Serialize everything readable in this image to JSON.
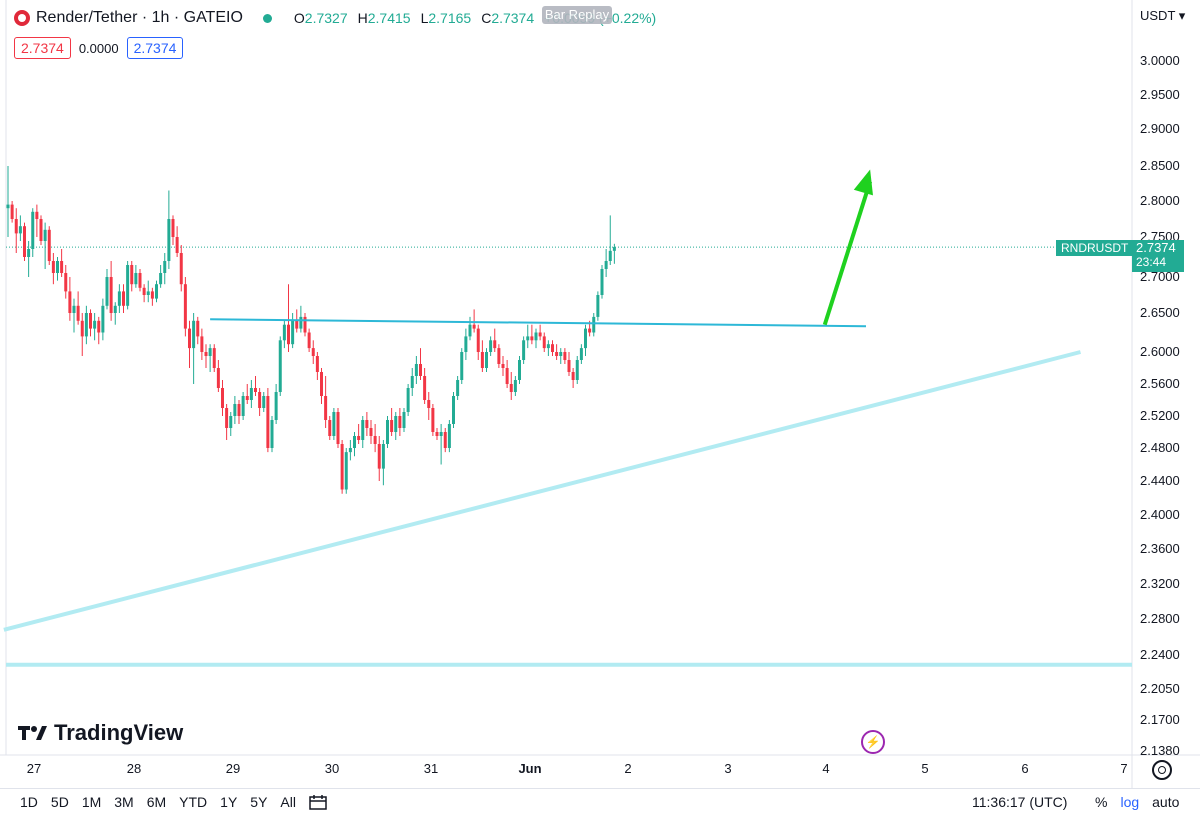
{
  "header": {
    "symbol_title": "Render/Tether · 1h · GATEIO",
    "ohlc": [
      {
        "k": "O",
        "v": "2.7327"
      },
      {
        "k": "H",
        "v": "2.7415"
      },
      {
        "k": "L",
        "v": "2.7165"
      },
      {
        "k": "C",
        "v": "2.7374"
      }
    ],
    "change": "+0.0059 (+0.22%)",
    "bar_replay": "Bar Replay",
    "box_left": "2.7374",
    "box_mid": "0.0000",
    "box_right": "2.7374",
    "currency": "USDT"
  },
  "price_label": {
    "ticker": "RNDRUSDT",
    "price": "2.7374",
    "countdown": "23:44"
  },
  "branding": {
    "name": "TradingView"
  },
  "footer": {
    "ranges": [
      "1D",
      "5D",
      "1M",
      "3M",
      "6M",
      "YTD",
      "1Y",
      "5Y",
      "All"
    ],
    "clock": "11:36:17 (UTC)",
    "percent": "%",
    "log": "log",
    "auto": "auto"
  },
  "colors": {
    "up": "#22ab94",
    "down": "#f23645",
    "horizontal_line": "#2db8d7",
    "trendline": "#b2ebf2",
    "arrow": "#1fd11f"
  },
  "chart_data": {
    "type": "candlestick",
    "scale": "log",
    "y_ticks": [
      "3.0000",
      "2.9500",
      "2.9000",
      "2.8500",
      "2.8000",
      "2.7500",
      "2.7000",
      "2.6500",
      "2.6000",
      "2.5600",
      "2.5200",
      "2.4800",
      "2.4400",
      "2.4000",
      "2.3600",
      "2.3200",
      "2.2800",
      "2.2400",
      "2.2050",
      "2.1700",
      "2.1380"
    ],
    "x_ticks": [
      "27",
      "28",
      "29",
      "30",
      "31",
      "Jun",
      "2",
      "3",
      "4",
      "5",
      "6",
      "7"
    ],
    "last_price": 2.7374,
    "candles_ohlc": [
      [
        2.79,
        2.85,
        2.75,
        2.795
      ],
      [
        2.795,
        2.8,
        2.77,
        2.775
      ],
      [
        2.775,
        2.79,
        2.73,
        2.755
      ],
      [
        2.755,
        2.78,
        2.745,
        2.765
      ],
      [
        2.765,
        2.77,
        2.72,
        2.725
      ],
      [
        2.725,
        2.745,
        2.7,
        2.735
      ],
      [
        2.735,
        2.79,
        2.725,
        2.785
      ],
      [
        2.785,
        2.795,
        2.75,
        2.775
      ],
      [
        2.775,
        2.78,
        2.74,
        2.745
      ],
      [
        2.745,
        2.77,
        2.71,
        2.76
      ],
      [
        2.76,
        2.765,
        2.715,
        2.72
      ],
      [
        2.72,
        2.73,
        2.69,
        2.705
      ],
      [
        2.705,
        2.725,
        2.695,
        2.72
      ],
      [
        2.72,
        2.735,
        2.7,
        2.705
      ],
      [
        2.705,
        2.715,
        2.67,
        2.68
      ],
      [
        2.68,
        2.7,
        2.64,
        2.65
      ],
      [
        2.65,
        2.67,
        2.625,
        2.66
      ],
      [
        2.66,
        2.68,
        2.635,
        2.64
      ],
      [
        2.64,
        2.65,
        2.595,
        2.62
      ],
      [
        2.62,
        2.66,
        2.61,
        2.65
      ],
      [
        2.65,
        2.655,
        2.62,
        2.63
      ],
      [
        2.63,
        2.65,
        2.615,
        2.64
      ],
      [
        2.64,
        2.645,
        2.61,
        2.625
      ],
      [
        2.625,
        2.67,
        2.615,
        2.66
      ],
      [
        2.66,
        2.71,
        2.655,
        2.7
      ],
      [
        2.7,
        2.72,
        2.64,
        2.65
      ],
      [
        2.65,
        2.665,
        2.635,
        2.66
      ],
      [
        2.66,
        2.69,
        2.65,
        2.68
      ],
      [
        2.68,
        2.69,
        2.65,
        2.66
      ],
      [
        2.66,
        2.72,
        2.655,
        2.715
      ],
      [
        2.715,
        2.72,
        2.68,
        2.69
      ],
      [
        2.69,
        2.715,
        2.685,
        2.705
      ],
      [
        2.705,
        2.71,
        2.68,
        2.685
      ],
      [
        2.685,
        2.69,
        2.665,
        2.675
      ],
      [
        2.675,
        2.695,
        2.665,
        2.68
      ],
      [
        2.68,
        2.685,
        2.66,
        2.67
      ],
      [
        2.67,
        2.695,
        2.665,
        2.69
      ],
      [
        2.69,
        2.715,
        2.685,
        2.705
      ],
      [
        2.705,
        2.73,
        2.69,
        2.72
      ],
      [
        2.72,
        2.815,
        2.71,
        2.775
      ],
      [
        2.775,
        2.78,
        2.74,
        2.75
      ],
      [
        2.75,
        2.765,
        2.725,
        2.73
      ],
      [
        2.73,
        2.74,
        2.68,
        2.69
      ],
      [
        2.69,
        2.7,
        2.62,
        2.63
      ],
      [
        2.63,
        2.64,
        2.58,
        2.605
      ],
      [
        2.605,
        2.65,
        2.56,
        2.64
      ],
      [
        2.64,
        2.645,
        2.61,
        2.62
      ],
      [
        2.62,
        2.63,
        2.59,
        2.6
      ],
      [
        2.6,
        2.61,
        2.58,
        2.595
      ],
      [
        2.595,
        2.61,
        2.575,
        2.605
      ],
      [
        2.605,
        2.61,
        2.575,
        2.58
      ],
      [
        2.58,
        2.59,
        2.55,
        2.555
      ],
      [
        2.555,
        2.565,
        2.52,
        2.53
      ],
      [
        2.53,
        2.535,
        2.49,
        2.505
      ],
      [
        2.505,
        2.525,
        2.495,
        2.52
      ],
      [
        2.52,
        2.545,
        2.51,
        2.535
      ],
      [
        2.535,
        2.54,
        2.51,
        2.52
      ],
      [
        2.52,
        2.55,
        2.515,
        2.545
      ],
      [
        2.545,
        2.56,
        2.535,
        2.54
      ],
      [
        2.54,
        2.565,
        2.53,
        2.555
      ],
      [
        2.555,
        2.57,
        2.545,
        2.55
      ],
      [
        2.55,
        2.555,
        2.52,
        2.53
      ],
      [
        2.53,
        2.55,
        2.525,
        2.545
      ],
      [
        2.545,
        2.555,
        2.475,
        2.48
      ],
      [
        2.48,
        2.52,
        2.475,
        2.515
      ],
      [
        2.515,
        2.56,
        2.51,
        2.55
      ],
      [
        2.55,
        2.62,
        2.545,
        2.615
      ],
      [
        2.615,
        2.64,
        2.605,
        2.635
      ],
      [
        2.635,
        2.69,
        2.6,
        2.61
      ],
      [
        2.61,
        2.65,
        2.605,
        2.64
      ],
      [
        2.64,
        2.655,
        2.625,
        2.63
      ],
      [
        2.63,
        2.66,
        2.625,
        2.645
      ],
      [
        2.645,
        2.65,
        2.62,
        2.625
      ],
      [
        2.625,
        2.63,
        2.6,
        2.605
      ],
      [
        2.605,
        2.615,
        2.585,
        2.595
      ],
      [
        2.595,
        2.6,
        2.565,
        2.575
      ],
      [
        2.575,
        2.58,
        2.535,
        2.545
      ],
      [
        2.545,
        2.57,
        2.505,
        2.515
      ],
      [
        2.515,
        2.52,
        2.49,
        2.495
      ],
      [
        2.495,
        2.53,
        2.49,
        2.525
      ],
      [
        2.525,
        2.53,
        2.48,
        2.485
      ],
      [
        2.485,
        2.49,
        2.425,
        2.43
      ],
      [
        2.43,
        2.48,
        2.425,
        2.475
      ],
      [
        2.475,
        2.49,
        2.465,
        2.48
      ],
      [
        2.48,
        2.5,
        2.47,
        2.495
      ],
      [
        2.495,
        2.51,
        2.485,
        2.49
      ],
      [
        2.49,
        2.52,
        2.48,
        2.515
      ],
      [
        2.515,
        2.525,
        2.495,
        2.505
      ],
      [
        2.505,
        2.515,
        2.485,
        2.495
      ],
      [
        2.495,
        2.51,
        2.475,
        2.485
      ],
      [
        2.485,
        2.495,
        2.44,
        2.455
      ],
      [
        2.455,
        2.49,
        2.435,
        2.485
      ],
      [
        2.485,
        2.52,
        2.48,
        2.515
      ],
      [
        2.515,
        2.53,
        2.495,
        2.5
      ],
      [
        2.5,
        2.525,
        2.49,
        2.52
      ],
      [
        2.52,
        2.53,
        2.495,
        2.505
      ],
      [
        2.505,
        2.53,
        2.5,
        2.525
      ],
      [
        2.525,
        2.56,
        2.52,
        2.555
      ],
      [
        2.555,
        2.58,
        2.545,
        2.57
      ],
      [
        2.57,
        2.595,
        2.56,
        2.585
      ],
      [
        2.585,
        2.605,
        2.565,
        2.57
      ],
      [
        2.57,
        2.58,
        2.535,
        2.54
      ],
      [
        2.54,
        2.55,
        2.515,
        2.53
      ],
      [
        2.53,
        2.535,
        2.495,
        2.5
      ],
      [
        2.5,
        2.505,
        2.49,
        2.495
      ],
      [
        2.495,
        2.51,
        2.46,
        2.5
      ],
      [
        2.5,
        2.505,
        2.475,
        2.48
      ],
      [
        2.48,
        2.515,
        2.475,
        2.51
      ],
      [
        2.51,
        2.55,
        2.505,
        2.545
      ],
      [
        2.545,
        2.57,
        2.54,
        2.565
      ],
      [
        2.565,
        2.605,
        2.56,
        2.6
      ],
      [
        2.6,
        2.63,
        2.59,
        2.62
      ],
      [
        2.62,
        2.645,
        2.615,
        2.635
      ],
      [
        2.635,
        2.655,
        2.625,
        2.63
      ],
      [
        2.63,
        2.635,
        2.59,
        2.6
      ],
      [
        2.6,
        2.615,
        2.575,
        2.58
      ],
      [
        2.58,
        2.605,
        2.575,
        2.6
      ],
      [
        2.6,
        2.62,
        2.595,
        2.615
      ],
      [
        2.615,
        2.63,
        2.6,
        2.605
      ],
      [
        2.605,
        2.61,
        2.58,
        2.585
      ],
      [
        2.585,
        2.595,
        2.57,
        2.58
      ],
      [
        2.58,
        2.59,
        2.555,
        2.56
      ],
      [
        2.56,
        2.575,
        2.54,
        2.55
      ],
      [
        2.55,
        2.57,
        2.545,
        2.565
      ],
      [
        2.565,
        2.595,
        2.56,
        2.59
      ],
      [
        2.59,
        2.62,
        2.585,
        2.615
      ],
      [
        2.615,
        2.635,
        2.605,
        2.62
      ],
      [
        2.62,
        2.635,
        2.61,
        2.615
      ],
      [
        2.615,
        2.63,
        2.605,
        2.625
      ],
      [
        2.625,
        2.635,
        2.615,
        2.62
      ],
      [
        2.62,
        2.625,
        2.6,
        2.605
      ],
      [
        2.605,
        2.615,
        2.595,
        2.61
      ],
      [
        2.61,
        2.615,
        2.595,
        2.6
      ],
      [
        2.6,
        2.61,
        2.59,
        2.595
      ],
      [
        2.595,
        2.605,
        2.585,
        2.6
      ],
      [
        2.6,
        2.605,
        2.585,
        2.59
      ],
      [
        2.59,
        2.6,
        2.57,
        2.575
      ],
      [
        2.575,
        2.58,
        2.555,
        2.565
      ],
      [
        2.565,
        2.595,
        2.56,
        2.59
      ],
      [
        2.59,
        2.61,
        2.585,
        2.605
      ],
      [
        2.605,
        2.635,
        2.595,
        2.63
      ],
      [
        2.63,
        2.64,
        2.62,
        2.625
      ],
      [
        2.625,
        2.65,
        2.62,
        2.645
      ],
      [
        2.645,
        2.68,
        2.64,
        2.675
      ],
      [
        2.675,
        2.715,
        2.67,
        2.71
      ],
      [
        2.71,
        2.735,
        2.7,
        2.72
      ],
      [
        2.72,
        2.78,
        2.715,
        2.7327
      ],
      [
        2.7327,
        2.7415,
        2.7165,
        2.7374
      ]
    ]
  },
  "drawings": {
    "horizontal_line": {
      "x_start_candle": 49,
      "x_end_candle": 208,
      "price_start": 2.642,
      "price_end": 2.633
    },
    "trendline": {
      "x_start_candle": -1,
      "x_end_candle": 260,
      "price_start": 2.268,
      "price_end": 2.6
    },
    "support_line": {
      "price": 2.23
    },
    "arrow": {
      "from_candle": 198,
      "from_price": 2.635,
      "to_candle": 209,
      "to_price": 2.845
    }
  }
}
